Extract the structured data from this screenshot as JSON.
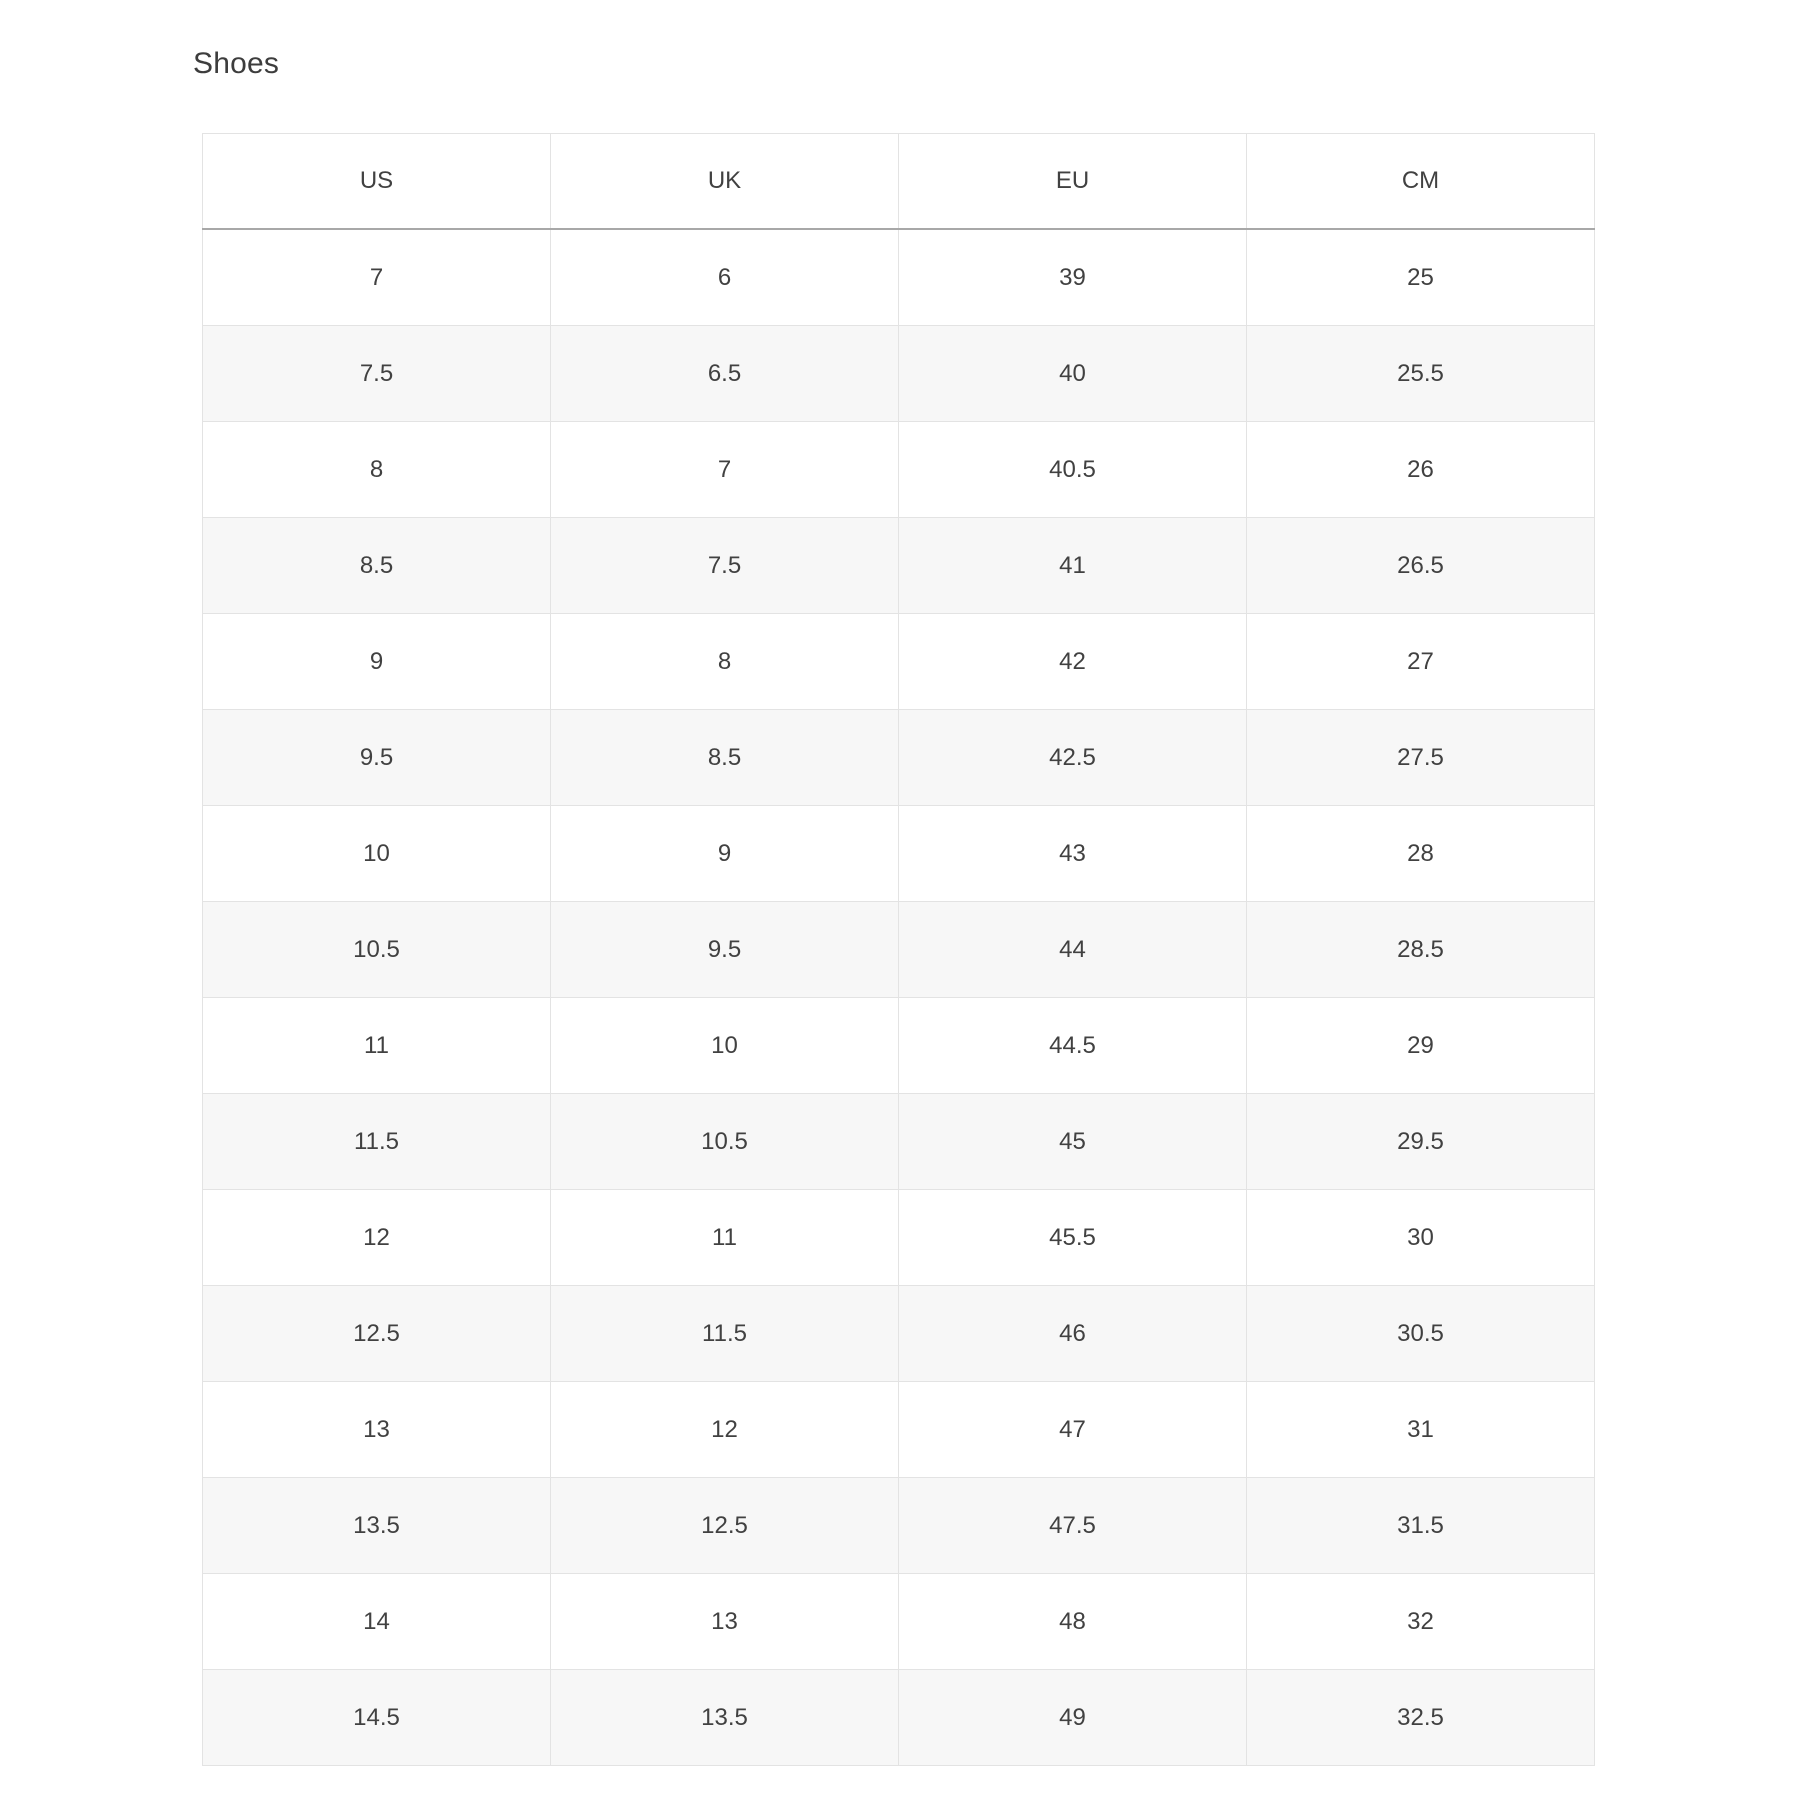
{
  "title": "Shoes",
  "size_chart": {
    "columns": [
      "US",
      "UK",
      "EU",
      "CM"
    ],
    "rows": [
      [
        "7",
        "6",
        "39",
        "25"
      ],
      [
        "7.5",
        "6.5",
        "40",
        "25.5"
      ],
      [
        "8",
        "7",
        "40.5",
        "26"
      ],
      [
        "8.5",
        "7.5",
        "41",
        "26.5"
      ],
      [
        "9",
        "8",
        "42",
        "27"
      ],
      [
        "9.5",
        "8.5",
        "42.5",
        "27.5"
      ],
      [
        "10",
        "9",
        "43",
        "28"
      ],
      [
        "10.5",
        "9.5",
        "44",
        "28.5"
      ],
      [
        "11",
        "10",
        "44.5",
        "29"
      ],
      [
        "11.5",
        "10.5",
        "45",
        "29.5"
      ],
      [
        "12",
        "11",
        "45.5",
        "30"
      ],
      [
        "12.5",
        "11.5",
        "46",
        "30.5"
      ],
      [
        "13",
        "12",
        "47",
        "31"
      ],
      [
        "13.5",
        "12.5",
        "47.5",
        "31.5"
      ],
      [
        "14",
        "13",
        "48",
        "32"
      ],
      [
        "14.5",
        "13.5",
        "49",
        "32.5"
      ]
    ]
  },
  "colors": {
    "text": "#414141",
    "title_text": "#3d3d3d",
    "border": "#e3e3e3",
    "header_underline": "#a8a8a8",
    "zebra_row": "#f7f7f7"
  }
}
